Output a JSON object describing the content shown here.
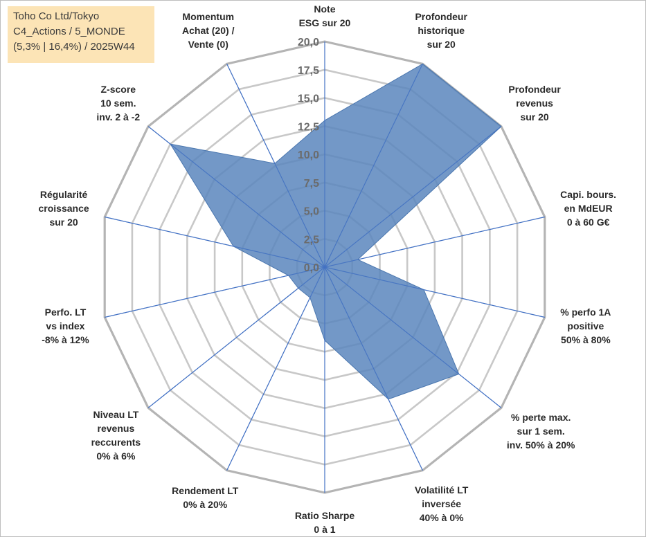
{
  "info": {
    "lines": [
      "Toho Co Ltd/Tokyo",
      "C4_Actions / 5_MONDE",
      "(5,3% | 16,4%) / 2025W44"
    ],
    "background": "#fce4b6"
  },
  "colors": {
    "fill": "#5b86bd",
    "fill_opacity": 0.85,
    "spokes": "#4472c4",
    "rings": "#c8c8c8",
    "outer_ring": "#b4b4b4"
  },
  "chart_data": {
    "type": "radar",
    "r_range": [
      0,
      20
    ],
    "ticks": [
      "0,0",
      "2,5",
      "5,0",
      "7,5",
      "10,0",
      "12,5",
      "15,0",
      "17,5",
      "20,0"
    ],
    "tick_values": [
      0,
      2.5,
      5,
      7.5,
      10,
      12.5,
      15,
      17.5,
      20
    ],
    "axes": [
      {
        "label_lines": [
          "Note",
          "ESG sur 20"
        ],
        "value": 13
      },
      {
        "label_lines": [
          "Profondeur",
          "historique",
          "sur 20"
        ],
        "value": 20
      },
      {
        "label_lines": [
          "Profondeur",
          "revenus",
          "sur 20"
        ],
        "value": 20
      },
      {
        "label_lines": [
          "Capi. bours.",
          "en MdEUR",
          "0 à 60 G€"
        ],
        "value": 3
      },
      {
        "label_lines": [
          "% perfo 1A",
          "positive",
          "50% à 80%"
        ],
        "value": 9
      },
      {
        "label_lines": [
          "% perte max.",
          "sur 1 sem.",
          "inv. 50% à 20%"
        ],
        "value": 15.2
      },
      {
        "label_lines": [
          "Volatilité LT",
          "inversée",
          "40% à 0%"
        ],
        "value": 13
      },
      {
        "label_lines": [
          "Ratio Sharpe",
          "0 à 1"
        ],
        "value": 6.5
      },
      {
        "label_lines": [
          "Rendement LT",
          "0% à 20%"
        ],
        "value": 3
      },
      {
        "label_lines": [
          "Niveau LT",
          "revenus",
          "reccurents",
          "0% à 6%"
        ],
        "value": 3
      },
      {
        "label_lines": [
          "Perfo. LT",
          "vs index",
          "-8% à 12%"
        ],
        "value": 3.3
      },
      {
        "label_lines": [
          "Régularité",
          "croissance",
          "sur 20"
        ],
        "value": 8.3
      },
      {
        "label_lines": [
          "Z-score",
          "10 sem.",
          "inv. 2 à -2"
        ],
        "value": 17.5
      },
      {
        "label_lines": [
          "Momentum",
          "Achat (20) /",
          "Vente (0)"
        ],
        "value": 10.2
      }
    ],
    "grid": true,
    "legend": "none"
  }
}
